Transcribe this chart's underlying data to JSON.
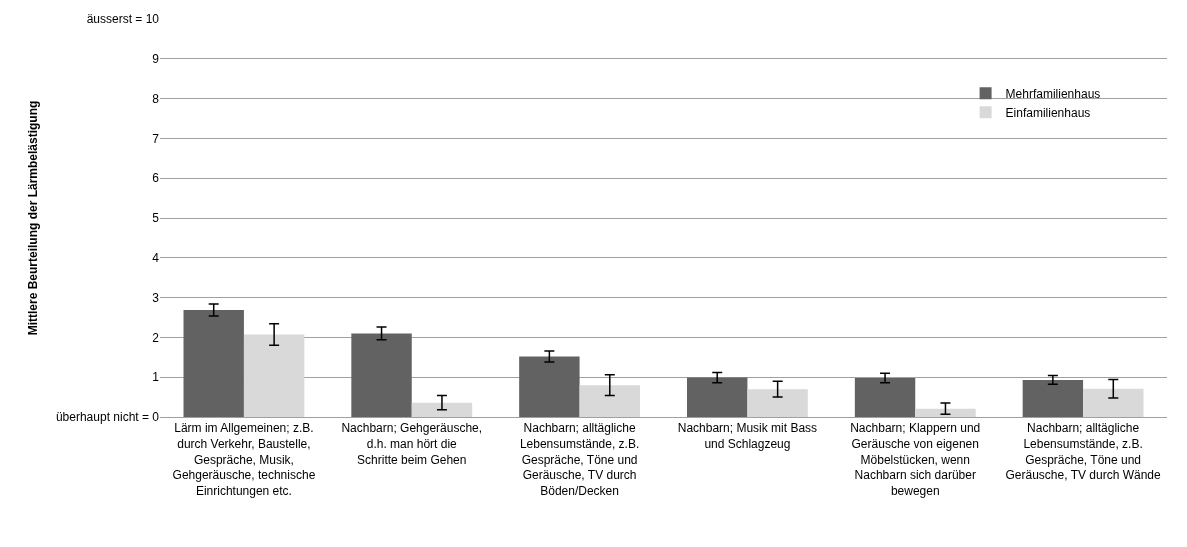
{
  "chart_data": {
    "type": "bar",
    "ylabel": "Mittlere Beurteilung der Lärmbelästigung",
    "categories": [
      "Lärm im Allgemeinen; z.B. durch Verkehr, Baustelle, Gespräche, Musik, Gehgeräusche, technische Einrichtungen etc.",
      "Nachbarn; Gehgeräusche, d.h. man hört die Schritte beim Gehen",
      "Nachbarn; alltägliche Lebensumstände, z.B. Gespräche, Töne und Geräusche, TV durch Böden/Decken",
      "Nachbarn; Musik mit Bass und Schlagzeug",
      "Nachbarn; Klappern und Geräusche von eigenen Möbelstücken, wenn Nachbarn sich darüber bewegen",
      "Nachbarn; alltägliche Lebensumstände, z.B. Gespräche, Töne und Geräusche, TV durch Wände"
    ],
    "series": [
      {
        "name": "Mehrfamilienhaus",
        "color": "#626262",
        "values": [
          2.69,
          2.1,
          1.52,
          0.99,
          0.98,
          0.93
        ],
        "errors": [
          0.15,
          0.16,
          0.14,
          0.13,
          0.12,
          0.11
        ]
      },
      {
        "name": "Einfamilienhaus",
        "color": "#d9d9d9",
        "values": [
          2.07,
          0.36,
          0.8,
          0.7,
          0.21,
          0.71
        ],
        "errors": [
          0.27,
          0.18,
          0.26,
          0.2,
          0.14,
          0.23
        ]
      }
    ],
    "ylim": [
      0,
      10
    ],
    "yticks": [
      {
        "value": 0,
        "label": "überhaupt nicht = 0"
      },
      1,
      2,
      3,
      4,
      5,
      6,
      7,
      8,
      9,
      {
        "value": 10,
        "label": "äusserst = 10"
      }
    ],
    "grid": "y",
    "legend": "top right"
  }
}
